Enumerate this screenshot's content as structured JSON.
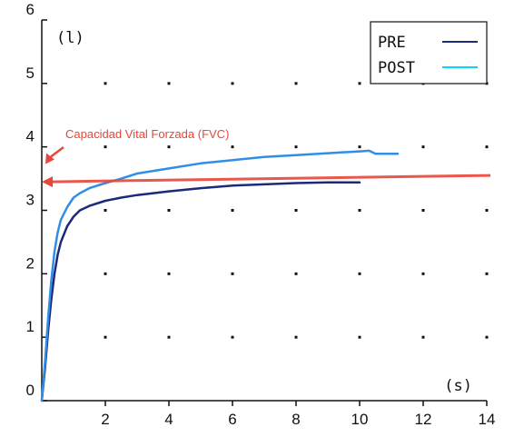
{
  "chart_data": {
    "type": "line",
    "xlabel": "(s)",
    "ylabel": "(l)",
    "xlim": [
      0,
      14
    ],
    "ylim": [
      0,
      6
    ],
    "x_ticks": [
      2,
      4,
      6,
      8,
      10,
      12,
      14
    ],
    "y_ticks": [
      0,
      1,
      2,
      3,
      4,
      5,
      6
    ],
    "grid": "dots",
    "legend": "top-right",
    "series": [
      {
        "name": "PRE",
        "color": "#1c2a7a",
        "points": [
          [
            0,
            0
          ],
          [
            0.1,
            0.5
          ],
          [
            0.2,
            1.1
          ],
          [
            0.3,
            1.6
          ],
          [
            0.4,
            2.0
          ],
          [
            0.5,
            2.3
          ],
          [
            0.6,
            2.5
          ],
          [
            0.8,
            2.75
          ],
          [
            1.0,
            2.9
          ],
          [
            1.2,
            3.0
          ],
          [
            1.5,
            3.07
          ],
          [
            2.0,
            3.15
          ],
          [
            2.5,
            3.2
          ],
          [
            3,
            3.24
          ],
          [
            4,
            3.3
          ],
          [
            5,
            3.35
          ],
          [
            6,
            3.39
          ],
          [
            7,
            3.41
          ],
          [
            8,
            3.43
          ],
          [
            9,
            3.44
          ],
          [
            10,
            3.44
          ]
        ]
      },
      {
        "name": "POST",
        "color": "#2f8fe6",
        "points": [
          [
            0,
            0
          ],
          [
            0.1,
            0.6
          ],
          [
            0.2,
            1.3
          ],
          [
            0.3,
            1.9
          ],
          [
            0.4,
            2.35
          ],
          [
            0.5,
            2.65
          ],
          [
            0.6,
            2.85
          ],
          [
            0.8,
            3.05
          ],
          [
            1.0,
            3.2
          ],
          [
            1.2,
            3.27
          ],
          [
            1.5,
            3.35
          ],
          [
            2.0,
            3.43
          ],
          [
            2.5,
            3.5
          ],
          [
            3,
            3.58
          ],
          [
            4,
            3.66
          ],
          [
            5,
            3.74
          ],
          [
            6,
            3.79
          ],
          [
            7,
            3.84
          ],
          [
            8,
            3.87
          ],
          [
            9,
            3.9
          ],
          [
            10,
            3.93
          ],
          [
            10.3,
            3.94
          ],
          [
            10.5,
            3.89
          ],
          [
            11.2,
            3.89
          ]
        ]
      }
    ],
    "legend_swatches": {
      "PRE": "#1c2a7a",
      "POST": "#00d8ff"
    },
    "annotation": {
      "text": "Capacidad Vital Forzada (FVC)",
      "color": "#e8463a",
      "line": [
        [
          0,
          3.45
        ],
        [
          14,
          3.55
        ]
      ]
    }
  }
}
